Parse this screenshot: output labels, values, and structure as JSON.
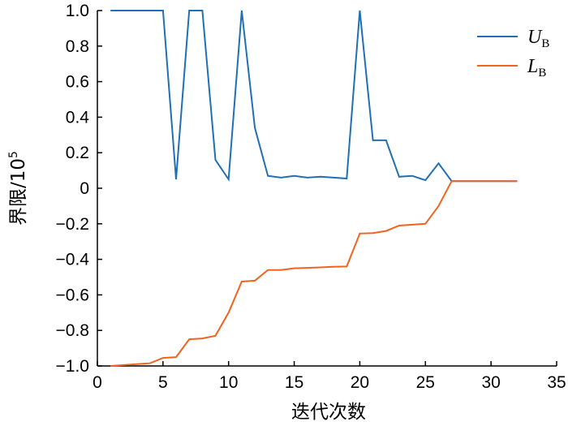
{
  "chart_data": {
    "type": "line",
    "xlabel": "迭代次数",
    "ylabel": {
      "base": "界限/10",
      "exponent": "5"
    },
    "xlim": [
      0,
      35
    ],
    "ylim": [
      -1.0,
      1.0
    ],
    "x_ticks": [
      0,
      5,
      10,
      15,
      20,
      25,
      30,
      35
    ],
    "x_tick_labels": [
      "0",
      "5",
      "10",
      "15",
      "20",
      "25",
      "30",
      "35"
    ],
    "y_ticks": [
      1.0,
      0.8,
      0.6,
      0.4,
      0.2,
      0,
      -0.2,
      -0.4,
      -0.6,
      -0.8,
      -1.0
    ],
    "y_tick_labels": [
      "1.0",
      "0.8",
      "0.6",
      "0.4",
      "0.2",
      "0",
      "−0.2",
      "−0.4",
      "−0.6",
      "−0.8",
      "−1.0"
    ],
    "grid": false,
    "legend_position": "top-right",
    "series": [
      {
        "name": "U",
        "subscript": "B",
        "color": "#1f70b4",
        "x": [
          1,
          2,
          3,
          4,
          5,
          6,
          7,
          8,
          9,
          10,
          11,
          12,
          13,
          14,
          15,
          16,
          17,
          18,
          19,
          20,
          21,
          22,
          23,
          24,
          25,
          26,
          27,
          28,
          29,
          30,
          31,
          32
        ],
        "y": [
          1.0,
          1.0,
          1.0,
          1.0,
          1.0,
          0.05,
          1.0,
          1.0,
          0.16,
          0.05,
          1.0,
          0.34,
          0.07,
          0.06,
          0.07,
          0.06,
          0.065,
          0.06,
          0.055,
          1.0,
          0.27,
          0.27,
          0.065,
          0.07,
          0.045,
          0.14,
          0.04,
          0.04,
          0.04,
          0.04,
          0.04,
          0.04
        ]
      },
      {
        "name": "L",
        "subscript": "B",
        "color": "#f0641e",
        "x": [
          1,
          2,
          3,
          4,
          5,
          6,
          7,
          8,
          9,
          10,
          11,
          12,
          13,
          14,
          15,
          16,
          17,
          18,
          19,
          20,
          21,
          22,
          23,
          24,
          25,
          26,
          27,
          28,
          29,
          30,
          31,
          32
        ],
        "y": [
          -1.0,
          -0.995,
          -0.99,
          -0.985,
          -0.955,
          -0.95,
          -0.85,
          -0.845,
          -0.83,
          -0.7,
          -0.525,
          -0.52,
          -0.46,
          -0.46,
          -0.45,
          -0.448,
          -0.445,
          -0.442,
          -0.44,
          -0.255,
          -0.252,
          -0.24,
          -0.21,
          -0.205,
          -0.2,
          -0.1,
          0.04,
          0.04,
          0.04,
          0.04,
          0.04,
          0.04
        ]
      }
    ]
  }
}
